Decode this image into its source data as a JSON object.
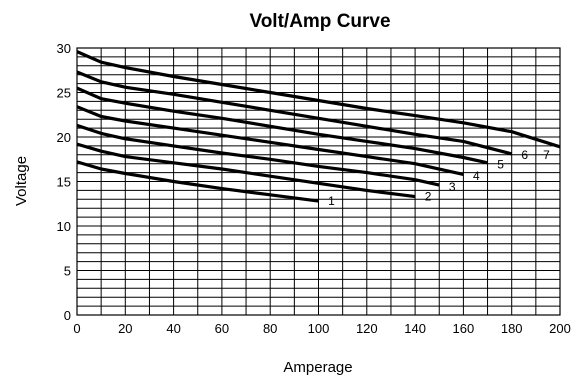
{
  "chart_data": {
    "type": "line",
    "title": "Volt/Amp Curve",
    "xlabel": "Amperage",
    "ylabel": "Voltage",
    "xlim": [
      0,
      200
    ],
    "ylim": [
      0,
      30
    ],
    "x_ticks": [
      0,
      20,
      40,
      60,
      80,
      100,
      120,
      140,
      160,
      180,
      200
    ],
    "y_ticks": [
      0,
      5,
      10,
      15,
      20,
      25,
      30
    ],
    "grid": {
      "x_step": 10,
      "y_step": 1
    },
    "series": [
      {
        "name": "1",
        "x": [
          0,
          10,
          20,
          40,
          60,
          80,
          100
        ],
        "y": [
          17.2,
          16.4,
          15.9,
          15.0,
          14.2,
          13.5,
          12.8
        ]
      },
      {
        "name": "2",
        "x": [
          0,
          10,
          20,
          40,
          60,
          80,
          100,
          120,
          140
        ],
        "y": [
          19.2,
          18.4,
          17.8,
          17.1,
          16.4,
          15.6,
          14.8,
          14.0,
          13.3
        ]
      },
      {
        "name": "3",
        "x": [
          0,
          10,
          20,
          40,
          60,
          80,
          100,
          120,
          140,
          150
        ],
        "y": [
          21.3,
          20.4,
          19.8,
          19.0,
          18.2,
          17.5,
          16.7,
          16.0,
          15.2,
          14.6
        ]
      },
      {
        "name": "4",
        "x": [
          0,
          10,
          20,
          40,
          60,
          80,
          100,
          120,
          140,
          160
        ],
        "y": [
          23.4,
          22.3,
          21.8,
          21.0,
          20.2,
          19.4,
          18.6,
          17.8,
          17.0,
          15.8
        ]
      },
      {
        "name": "5",
        "x": [
          0,
          10,
          20,
          40,
          60,
          80,
          100,
          120,
          140,
          160,
          170
        ],
        "y": [
          25.5,
          24.3,
          23.8,
          22.9,
          22.1,
          21.2,
          20.3,
          19.5,
          18.7,
          17.7,
          17.1
        ]
      },
      {
        "name": "6",
        "x": [
          0,
          10,
          20,
          40,
          60,
          80,
          100,
          120,
          140,
          160,
          180
        ],
        "y": [
          27.3,
          26.2,
          25.6,
          24.8,
          23.9,
          23.0,
          22.1,
          21.2,
          20.3,
          19.5,
          18.1
        ]
      },
      {
        "name": "7",
        "x": [
          0,
          10,
          20,
          40,
          60,
          80,
          100,
          120,
          140,
          160,
          180,
          200
        ],
        "y": [
          29.6,
          28.4,
          27.8,
          26.8,
          25.9,
          25.0,
          24.1,
          23.2,
          22.4,
          21.6,
          20.6,
          18.9
        ]
      }
    ],
    "series_labels": [
      {
        "text": "1",
        "x": 104,
        "y": 12.8
      },
      {
        "text": "2",
        "x": 144,
        "y": 13.3
      },
      {
        "text": "3",
        "x": 154,
        "y": 14.4
      },
      {
        "text": "4",
        "x": 164,
        "y": 15.6
      },
      {
        "text": "5",
        "x": 174,
        "y": 16.9
      },
      {
        "text": "6",
        "x": 184,
        "y": 18.0
      },
      {
        "text": "7",
        "x": 193,
        "y": 18.0
      }
    ]
  }
}
